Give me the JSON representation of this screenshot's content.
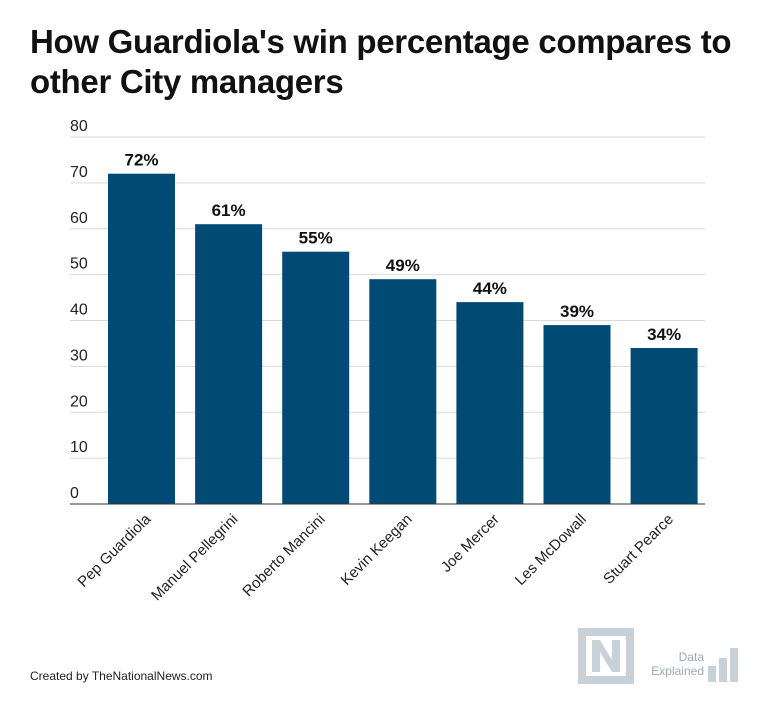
{
  "chart_data": {
    "type": "bar",
    "title": "How Guardiola's win percentage compares to other City managers",
    "categories": [
      "Pep Guardiola",
      "Manuel Pellegrini",
      "Roberto Mancini",
      "Kevin Keegan",
      "Joe Mercer",
      "Les McDowall",
      "Stuart Pearce"
    ],
    "values": [
      72,
      61,
      55,
      49,
      44,
      39,
      34
    ],
    "data_labels": [
      "72%",
      "61%",
      "55%",
      "49%",
      "44%",
      "39%",
      "34%"
    ],
    "ylim": [
      0,
      80
    ],
    "yticks": [
      "0",
      "10",
      "20",
      "30",
      "40",
      "50",
      "60",
      "70",
      "80"
    ],
    "grid": true,
    "bar_color": "#004a74",
    "grid_color": "#d9d9d9"
  },
  "footer": {
    "credit": "Created by TheNationalNews.com",
    "brand_line1": "Data",
    "brand_line2": "Explained",
    "logo_icon": "n-logo-icon",
    "bars_icon": "bar-chart-icon"
  }
}
